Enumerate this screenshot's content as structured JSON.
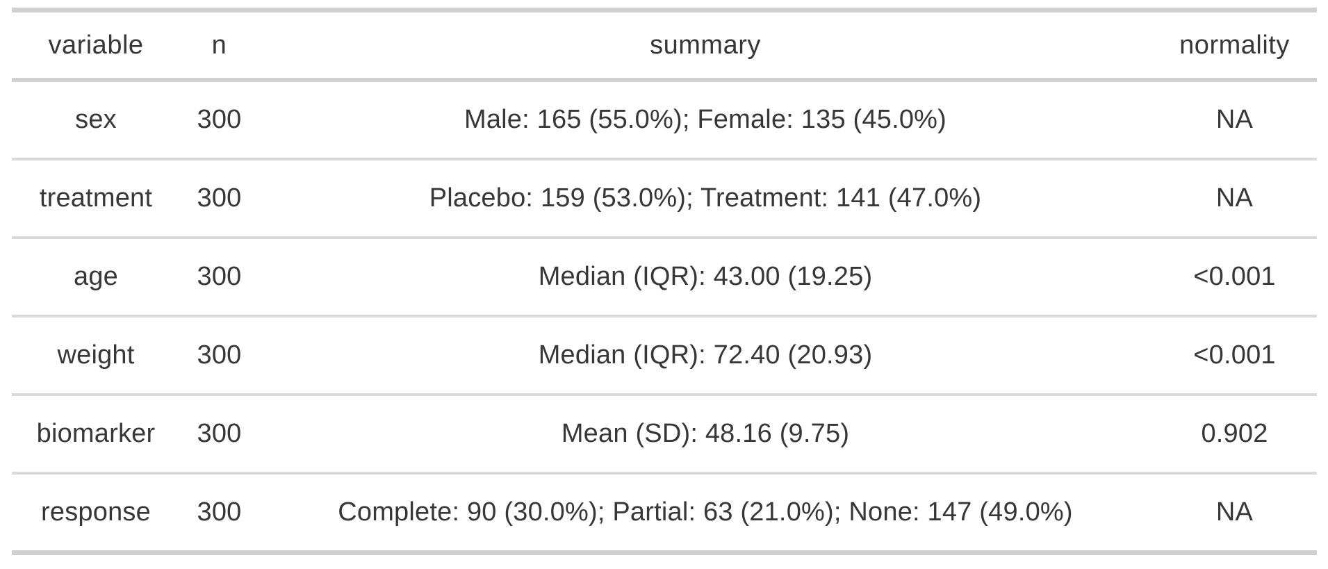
{
  "page": {
    "background": "#ffffff",
    "text_color": "#373737",
    "border_heavy_color": "#d0d0d0",
    "border_light_color": "#d9d9d9"
  },
  "chart_data": {
    "type": "table",
    "title": "",
    "columns": [
      "variable",
      "n",
      "summary",
      "normality"
    ],
    "rows": [
      [
        "sex",
        "300",
        "Male: 165 (55.0%); Female: 135 (45.0%)",
        "NA"
      ],
      [
        "treatment",
        "300",
        "Placebo: 159 (53.0%); Treatment: 141 (47.0%)",
        "NA"
      ],
      [
        "age",
        "300",
        "Median (IQR): 43.00 (19.25)",
        "<0.001"
      ],
      [
        "weight",
        "300",
        "Median (IQR): 72.40 (20.93)",
        "<0.001"
      ],
      [
        "biomarker",
        "300",
        "Mean (SD): 48.16 (9.75)",
        "0.902"
      ],
      [
        "response",
        "300",
        "Complete: 90 (30.0%); Partial: 63 (21.0%); None: 147 (49.0%)",
        "NA"
      ]
    ],
    "layout": {
      "header_row": true,
      "alignment": "center",
      "grid": "horizontal-rules-only"
    }
  }
}
